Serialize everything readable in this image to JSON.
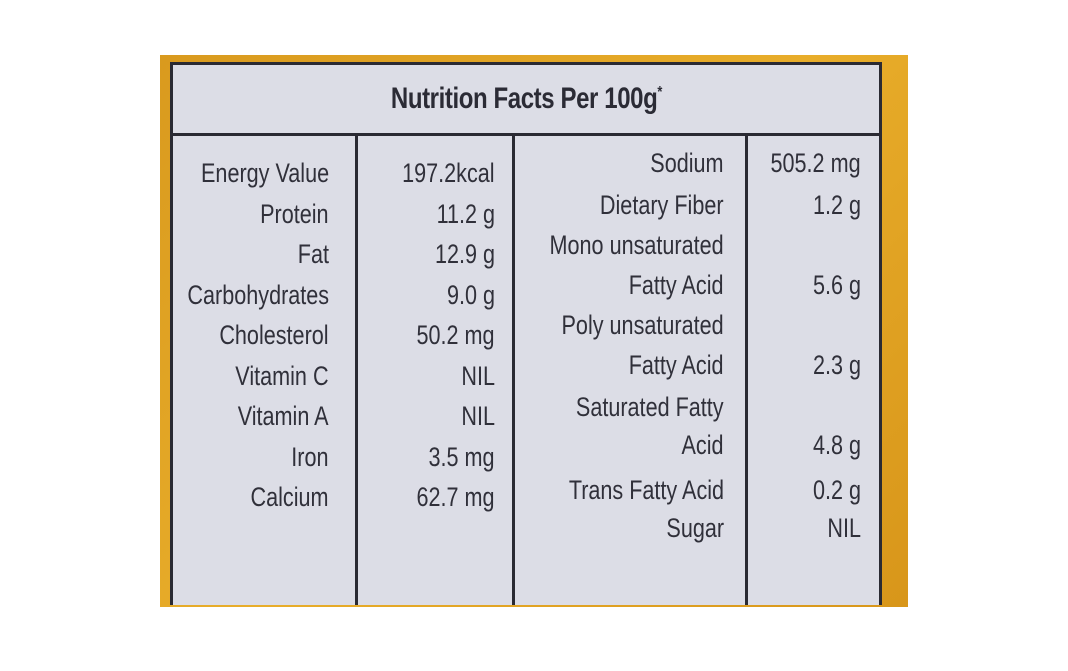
{
  "title": "Nutrition Facts Per 100g",
  "title_mark": "*",
  "colors": {
    "background": "#e0a224",
    "label": "#dcdde6",
    "text": "#30303a"
  },
  "left_rows": [
    {
      "name": "Energy Value",
      "value": "197.2kcal"
    },
    {
      "name": "Protein",
      "value": "11.2 g"
    },
    {
      "name": "Fat",
      "value": "12.9 g"
    },
    {
      "name": "Carbohydrates",
      "value": "9.0 g"
    },
    {
      "name": "Cholesterol",
      "value": "50.2 mg"
    },
    {
      "name": "Vitamin C",
      "value": "NIL"
    },
    {
      "name": "Vitamin A",
      "value": "NIL"
    },
    {
      "name": "Iron",
      "value": "3.5 mg"
    },
    {
      "name": "Calcium",
      "value": "62.7 mg"
    }
  ],
  "right_rows": [
    {
      "name": "Sodium",
      "value": "505.2 mg"
    },
    {
      "name": "Dietary Fiber",
      "value": "1.2 g"
    },
    {
      "name": "Mono unsaturated",
      "value": ""
    },
    {
      "name": "Fatty Acid",
      "value": "5.6 g"
    },
    {
      "name": "Poly unsaturated",
      "value": ""
    },
    {
      "name": "Fatty Acid",
      "value": "2.3 g"
    },
    {
      "name": "Saturated Fatty",
      "value": ""
    },
    {
      "name": "Acid",
      "value": "4.8 g"
    },
    {
      "name": "Trans Fatty Acid",
      "value": "0.2 g"
    },
    {
      "name": "Sugar",
      "value": "NIL"
    }
  ]
}
